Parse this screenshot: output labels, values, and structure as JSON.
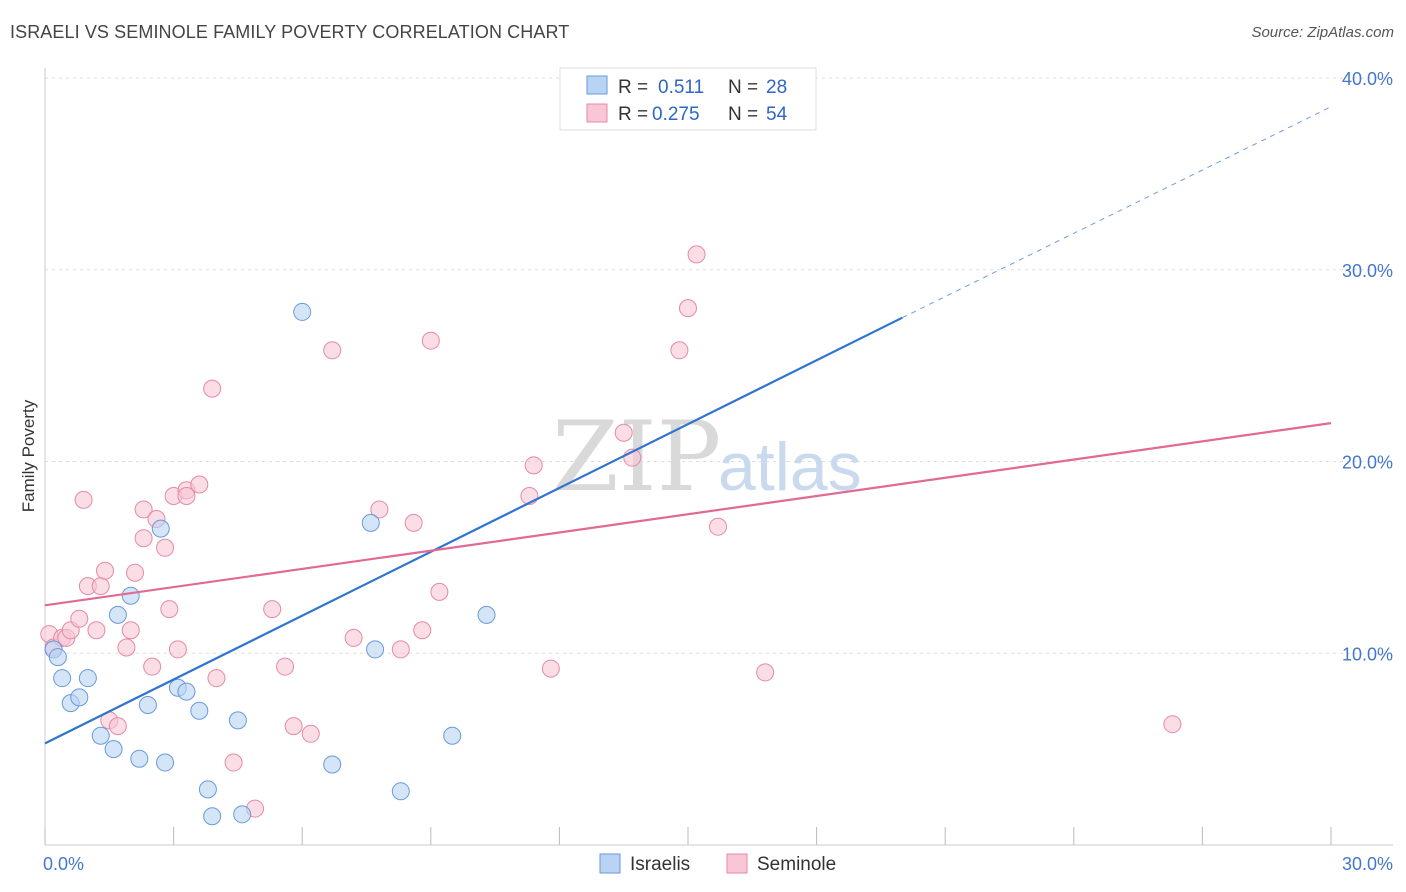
{
  "title": "ISRAELI VS SEMINOLE FAMILY POVERTY CORRELATION CHART",
  "source": "Source: ZipAtlas.com",
  "colors": {
    "israelis_fill": "#b9d3f4",
    "israelis_stroke": "#6a9ad8",
    "israelis_line": "#2f74cf",
    "seminole_fill": "#f8c6d5",
    "seminole_stroke": "#e58aa8",
    "seminole_line": "#e06a94",
    "tick_label": "#4477cc",
    "grid": "#dddddd"
  },
  "legend": {
    "rows": [
      {
        "r_label": "R = ",
        "r_value": "0.511",
        "n_label": "N = ",
        "n_value": "28"
      },
      {
        "r_label": "R = ",
        "r_value": "0.275",
        "n_label": "N = ",
        "n_value": "54"
      }
    ]
  },
  "watermark": {
    "zip": "ZIP",
    "atlas": "atlas"
  },
  "chart_data": {
    "type": "scatter",
    "title": "ISRAELI VS SEMINOLE FAMILY POVERTY CORRELATION CHART",
    "xlabel": "",
    "ylabel": "Family Poverty",
    "xlim": [
      0,
      30
    ],
    "ylim": [
      0,
      40
    ],
    "x_tick_labels": [
      {
        "value": 0,
        "label": "0.0%"
      },
      {
        "value": 30,
        "label": "30.0%"
      }
    ],
    "y_tick_labels": [
      {
        "value": 10,
        "label": "10.0%"
      },
      {
        "value": 20,
        "label": "20.0%"
      },
      {
        "value": 30,
        "label": "30.0%"
      },
      {
        "value": 40,
        "label": "40.0%"
      }
    ],
    "grid": "horizontal dashed",
    "legend_placement": "top-center",
    "series": [
      {
        "name": "Israelis",
        "trend": {
          "x0": 0,
          "y0": 5.3,
          "x1": 20,
          "y1": 27.5,
          "dash_to_x": 30,
          "dash_to_y": 38.5
        },
        "points": [
          [
            0.2,
            10.2
          ],
          [
            0.3,
            9.8
          ],
          [
            0.4,
            8.7
          ],
          [
            0.6,
            7.4
          ],
          [
            0.8,
            7.7
          ],
          [
            1.0,
            8.7
          ],
          [
            1.3,
            5.7
          ],
          [
            1.6,
            5.0
          ],
          [
            1.7,
            12.0
          ],
          [
            2.0,
            13.0
          ],
          [
            2.2,
            4.5
          ],
          [
            2.4,
            7.3
          ],
          [
            2.7,
            16.5
          ],
          [
            2.8,
            4.3
          ],
          [
            3.1,
            8.2
          ],
          [
            3.3,
            8.0
          ],
          [
            3.6,
            7.0
          ],
          [
            3.8,
            2.9
          ],
          [
            3.9,
            1.5
          ],
          [
            4.5,
            6.5
          ],
          [
            4.6,
            1.6
          ],
          [
            6.0,
            27.8
          ],
          [
            6.7,
            4.2
          ],
          [
            7.6,
            16.8
          ],
          [
            7.7,
            10.2
          ],
          [
            8.3,
            2.8
          ],
          [
            9.5,
            5.7
          ],
          [
            10.3,
            12.0
          ]
        ]
      },
      {
        "name": "Seminole",
        "trend": {
          "x0": 0,
          "y0": 12.5,
          "x1": 30,
          "y1": 22.0
        },
        "points": [
          [
            0.1,
            11.0
          ],
          [
            0.2,
            10.3
          ],
          [
            0.4,
            10.8
          ],
          [
            0.5,
            10.8
          ],
          [
            0.6,
            11.2
          ],
          [
            0.8,
            11.8
          ],
          [
            0.9,
            18.0
          ],
          [
            1.0,
            13.5
          ],
          [
            1.2,
            11.2
          ],
          [
            1.3,
            13.5
          ],
          [
            1.4,
            14.3
          ],
          [
            1.5,
            6.5
          ],
          [
            1.7,
            6.2
          ],
          [
            1.9,
            10.3
          ],
          [
            2.0,
            11.2
          ],
          [
            2.1,
            14.2
          ],
          [
            2.3,
            17.5
          ],
          [
            2.3,
            16.0
          ],
          [
            2.5,
            9.3
          ],
          [
            2.6,
            17.0
          ],
          [
            2.8,
            15.5
          ],
          [
            2.9,
            12.3
          ],
          [
            3.0,
            18.2
          ],
          [
            3.1,
            10.2
          ],
          [
            3.3,
            18.5
          ],
          [
            3.3,
            18.2
          ],
          [
            3.6,
            18.8
          ],
          [
            3.9,
            23.8
          ],
          [
            4.0,
            8.7
          ],
          [
            4.4,
            4.3
          ],
          [
            4.9,
            1.9
          ],
          [
            5.3,
            12.3
          ],
          [
            5.6,
            9.3
          ],
          [
            5.8,
            6.2
          ],
          [
            6.2,
            5.8
          ],
          [
            6.7,
            25.8
          ],
          [
            7.2,
            10.8
          ],
          [
            7.8,
            17.5
          ],
          [
            8.3,
            10.2
          ],
          [
            8.6,
            16.8
          ],
          [
            8.8,
            11.2
          ],
          [
            9.0,
            26.3
          ],
          [
            9.2,
            13.2
          ],
          [
            11.3,
            18.2
          ],
          [
            11.4,
            19.8
          ],
          [
            11.8,
            9.2
          ],
          [
            13.5,
            21.5
          ],
          [
            13.7,
            20.2
          ],
          [
            14.8,
            25.8
          ],
          [
            15.0,
            28.0
          ],
          [
            15.2,
            30.8
          ],
          [
            15.7,
            16.6
          ],
          [
            16.8,
            9.0
          ],
          [
            26.3,
            6.3
          ]
        ]
      }
    ]
  },
  "bottom_legend": {
    "items": [
      {
        "label": "Israelis"
      },
      {
        "label": "Seminole"
      }
    ]
  }
}
